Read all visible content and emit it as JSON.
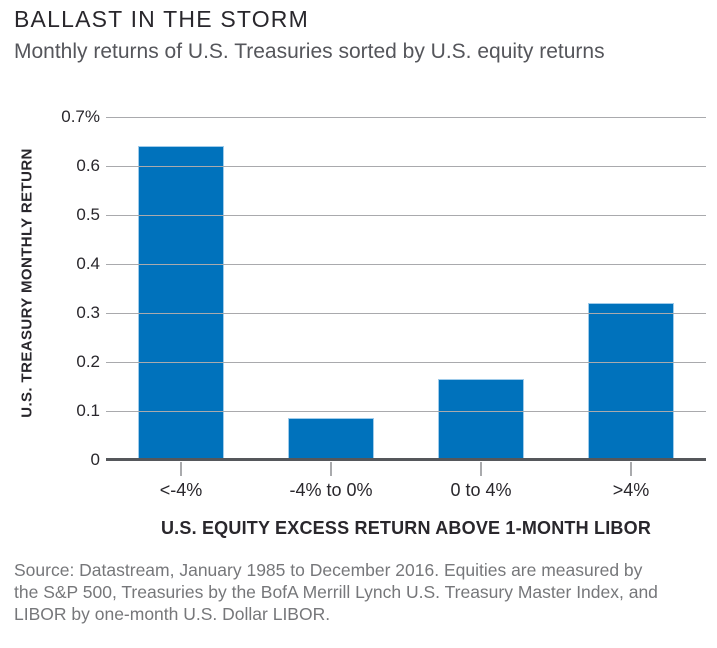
{
  "header": {
    "title": "BALLAST IN THE STORM",
    "subtitle": "Monthly returns of U.S. Treasuries sorted by U.S. equity returns"
  },
  "chart_data": {
    "type": "bar",
    "title": "BALLAST IN THE STORM",
    "subtitle": "Monthly returns of U.S. Treasuries sorted by U.S. equity returns",
    "categories": [
      "<-4%",
      "-4% to 0%",
      "0 to 4%",
      ">4%"
    ],
    "values": [
      0.64,
      0.085,
      0.165,
      0.32
    ],
    "xlabel": "U.S. EQUITY EXCESS RETURN ABOVE 1-MONTH LIBOR",
    "ylabel": "U.S. TREASURY MONTHLY RETURN",
    "ylim": [
      0,
      0.7
    ],
    "yticks": [
      {
        "value": 0.7,
        "label": "0.7%"
      },
      {
        "value": 0.6,
        "label": "0.6"
      },
      {
        "value": 0.5,
        "label": "0.5"
      },
      {
        "value": 0.4,
        "label": "0.4"
      },
      {
        "value": 0.3,
        "label": "0.3"
      },
      {
        "value": 0.2,
        "label": "0.2"
      },
      {
        "value": 0.1,
        "label": "0.1"
      },
      {
        "value": 0,
        "label": "0"
      }
    ],
    "grid": "horizontal",
    "legend": "none",
    "bar_color": "#0072BC"
  },
  "colors": {
    "bar": "#0072BC",
    "bar_edge": "#9FCBEA",
    "gridline": "#A9AAAD",
    "baseline": "#55575B",
    "title_text": "#29272C",
    "subtitle_text": "#55565B",
    "source_text": "#76777A"
  },
  "source": {
    "lines": [
      "Source: Datastream, January 1985 to December 2016. Equities are measured by",
      "the S&P 500, Treasuries by the BofA Merrill Lynch U.S. Treasury Master Index, and",
      "LIBOR by one-month U.S. Dollar LIBOR."
    ]
  }
}
